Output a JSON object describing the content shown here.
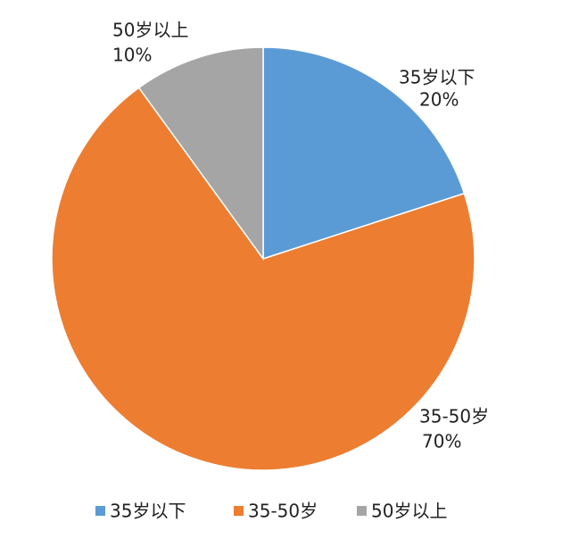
{
  "chart_data": {
    "type": "pie",
    "categories": [
      "35岁以下",
      "35-50岁",
      "50岁以上"
    ],
    "values": [
      20,
      70,
      10
    ],
    "value_labels": [
      "20%",
      "70%",
      "10%"
    ],
    "colors": [
      "#5b9bd5",
      "#ed7d31",
      "#a5a5a5"
    ],
    "legend": "bottom"
  }
}
